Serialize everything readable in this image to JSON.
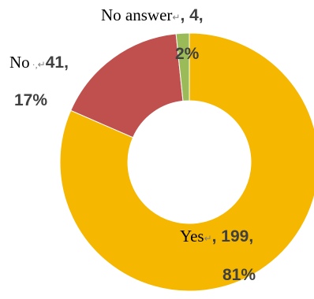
{
  "chart_data": {
    "type": "pie",
    "donut": true,
    "categories": [
      "Yes",
      "No",
      "No answer"
    ],
    "values": [
      199,
      41,
      4
    ],
    "percents": [
      "81%",
      "17%",
      "2%"
    ],
    "colors": [
      "#F5B700",
      "#C0504D",
      "#9BBB59"
    ],
    "labels": [
      {
        "name": "Yes",
        "mark": "↵",
        "rest": ", 199,",
        "pct": "81%"
      },
      {
        "name": "No",
        "mark": "·,↵",
        "rest": "41,",
        "pct": "17%"
      },
      {
        "name": "No answer",
        "mark": "↵",
        "rest": ", 4,",
        "pct": "2%"
      }
    ],
    "title": "",
    "legend": "none"
  }
}
